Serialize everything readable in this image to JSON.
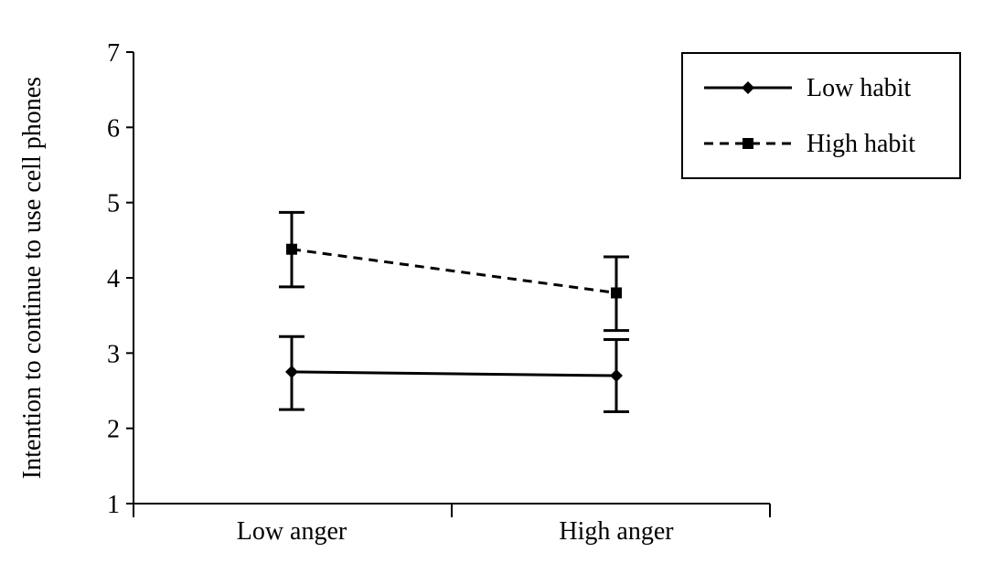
{
  "chart_data": {
    "type": "line",
    "title": "",
    "xlabel": "",
    "ylabel": "Intention to continue to use cell phones",
    "categories": [
      "Low anger",
      "High anger"
    ],
    "ylim": [
      1,
      7
    ],
    "yticks": [
      1,
      2,
      3,
      4,
      5,
      6,
      7
    ],
    "grid": false,
    "legend_position": "top-right",
    "series": [
      {
        "name": "Low habit",
        "values": [
          2.75,
          2.7
        ],
        "error_low": [
          2.25,
          2.22
        ],
        "error_high": [
          3.22,
          3.18
        ],
        "line_style": "solid",
        "marker": "diamond",
        "color": "#000000"
      },
      {
        "name": "High habit",
        "values": [
          4.38,
          3.8
        ],
        "error_low": [
          3.88,
          3.3
        ],
        "error_high": [
          4.87,
          4.28
        ],
        "line_style": "dashed",
        "marker": "square",
        "color": "#000000"
      }
    ]
  }
}
